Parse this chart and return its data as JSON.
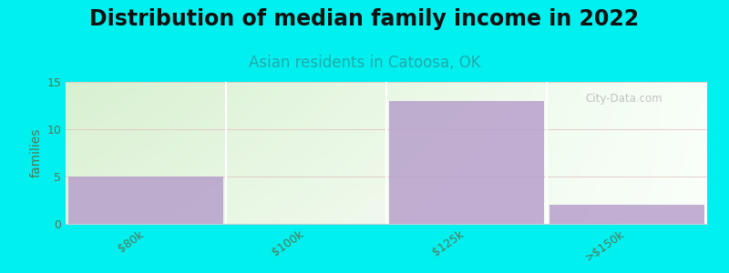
{
  "title": "Distribution of median family income in 2022",
  "subtitle": "Asian residents in Catoosa, OK",
  "categories": [
    "$80k",
    "$100k",
    "$125k",
    ">$150k"
  ],
  "values": [
    5,
    0,
    13,
    2
  ],
  "bar_color": "#b8a0cc",
  "background_color": "#00f0f0",
  "plot_bg_color_left": "#d8f0d0",
  "plot_bg_color_right": "#f0f8f0",
  "ylabel": "families",
  "ylim": [
    0,
    15
  ],
  "yticks": [
    0,
    5,
    10,
    15
  ],
  "title_fontsize": 17,
  "subtitle_fontsize": 12,
  "tick_label_fontsize": 9,
  "watermark": "City-Data.com"
}
